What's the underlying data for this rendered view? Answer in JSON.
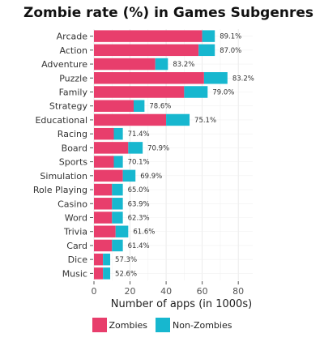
{
  "chart_data": {
    "type": "bar",
    "stacked": true,
    "orientation": "horizontal",
    "title": "Zombie rate (%) in Games Subgenres",
    "xlabel": "Number of apps (in 1000s)",
    "ylabel": "",
    "xlim": [
      0,
      88
    ],
    "xticks": [
      0,
      20,
      40,
      60,
      80
    ],
    "grid": true,
    "legend_position": "bottom",
    "categories": [
      "Arcade",
      "Action",
      "Adventure",
      "Puzzle",
      "Family",
      "Strategy",
      "Educational",
      "Racing",
      "Board",
      "Sports",
      "Simulation",
      "Role Playing",
      "Casino",
      "Word",
      "Trivia",
      "Card",
      "Dice",
      "Music"
    ],
    "series": [
      {
        "name": "Zombies",
        "color": "#e83e6c",
        "values": [
          60,
          58,
          34,
          61,
          50,
          22,
          40,
          11,
          19,
          11,
          16,
          10,
          10,
          10,
          12,
          10,
          5,
          5
        ]
      },
      {
        "name": "Non-Zombies",
        "color": "#17b7cf",
        "values": [
          7,
          9,
          7,
          13,
          13,
          6,
          13,
          5,
          8,
          5,
          7,
          6,
          6,
          6,
          7,
          6,
          4,
          4
        ]
      }
    ],
    "rate_labels": [
      "89.1%",
      "87.0%",
      "83.2%",
      "83.2%",
      "79.0%",
      "78.6%",
      "75.1%",
      "71.4%",
      "70.9%",
      "70.1%",
      "69.9%",
      "65.0%",
      "63.9%",
      "62.3%",
      "61.6%",
      "61.4%",
      "57.3%",
      "52.6%"
    ]
  }
}
